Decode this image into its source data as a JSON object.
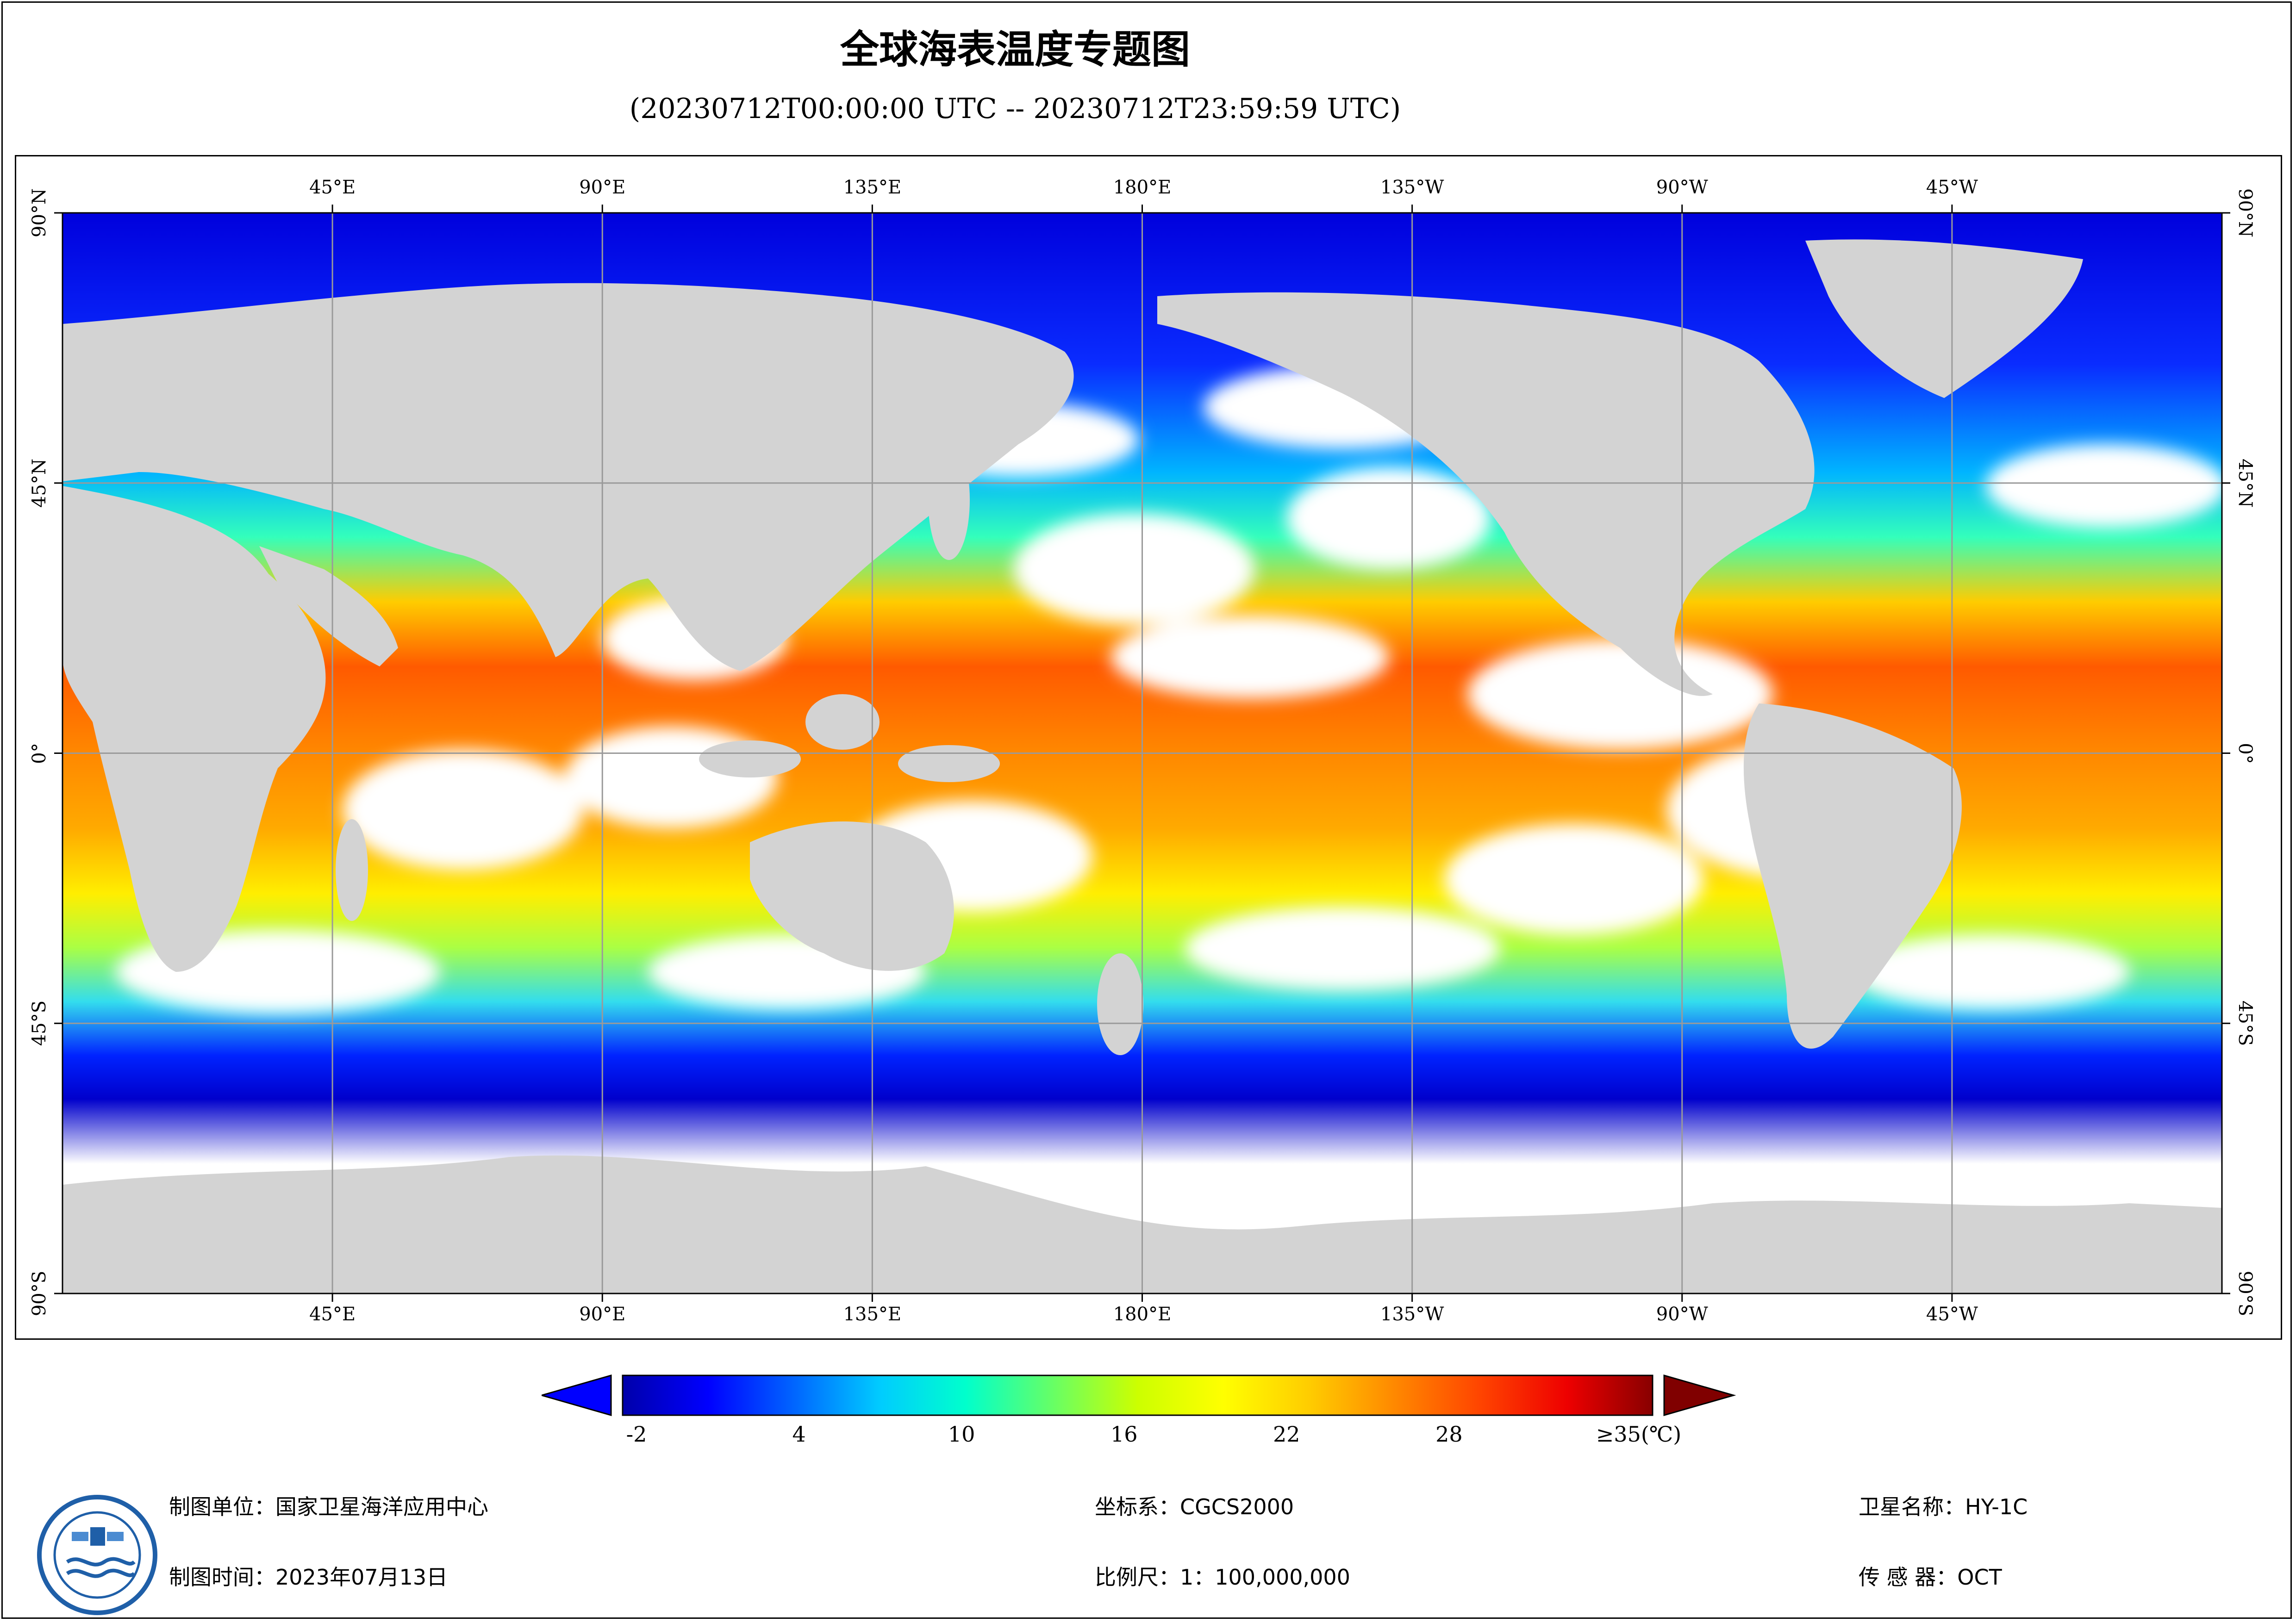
{
  "header": {
    "title": "全球海表温度专题图",
    "subtitle": "(20230712T00:00:00 UTC -- 20230712T23:59:59 UTC)"
  },
  "map": {
    "top_longitude_labels": [
      "45°E",
      "90°E",
      "135°E",
      "180°E",
      "135°W",
      "90°W",
      "45°W"
    ],
    "bottom_longitude_labels": [
      "45°E",
      "90°E",
      "135°E",
      "180°E",
      "135°W",
      "90°W",
      "45°W"
    ],
    "left_latitude_labels": [
      "90°N",
      "45°N",
      "0°",
      "45°S",
      "90°S"
    ],
    "right_latitude_labels": [
      "90°N",
      "45°N",
      "0°",
      "45°S",
      "90°S"
    ],
    "colors": {
      "land": "#d3d3d3",
      "no_data": "#ffffff",
      "grid": "#9a9a9a"
    }
  },
  "legend": {
    "tick_labels": [
      "-2",
      "4",
      "10",
      "16",
      "22",
      "28",
      "≥35(℃)"
    ],
    "colormap_stops": [
      "#0000aa",
      "#0000ff",
      "#0066ff",
      "#00ccff",
      "#00ffcc",
      "#66ff66",
      "#ccff00",
      "#ffff00",
      "#ffcc00",
      "#ff8800",
      "#ff4400",
      "#ee0000",
      "#880000"
    ],
    "under_color": "#0000ff",
    "over_color": "#800000"
  },
  "footer": {
    "producer": "制图单位：国家卫星海洋应用中心",
    "date": "制图时间：2023年07月13日",
    "coordinate_system": "坐标系：CGCS2000",
    "scale": "比例尺：1：100,000,000",
    "satellite": "卫星名称：HY-1C",
    "sensor": "传 感 器：OCT"
  },
  "logo": {
    "icon": "satellite-ocean-logo-icon",
    "ring_color": "#1f5fa8"
  }
}
